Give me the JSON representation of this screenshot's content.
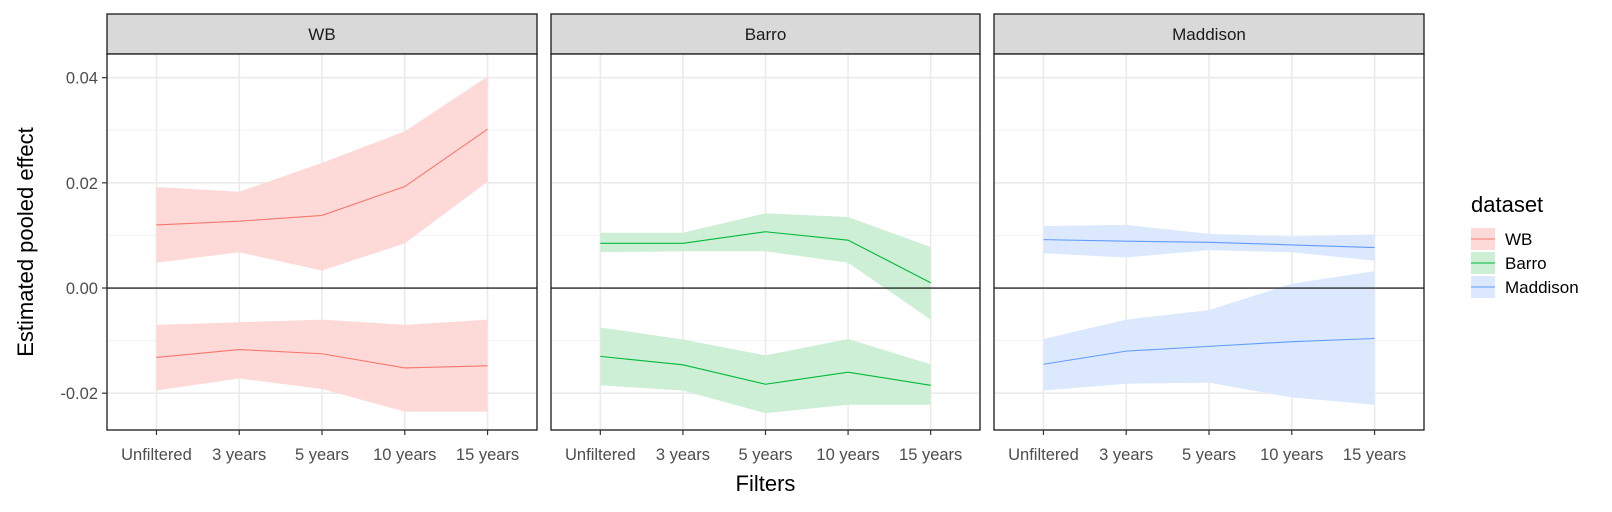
{
  "chart_data": {
    "type": "line",
    "facets": [
      "WB",
      "Barro",
      "Maddison"
    ],
    "categories": [
      "Unfiltered",
      "3 years",
      "5 years",
      "10 years",
      "15 years"
    ],
    "ylabel": "Estimated pooled effect",
    "xlabel": "Filters",
    "ylim": [
      -0.027,
      0.0445
    ],
    "yticks": [
      -0.02,
      0.0,
      0.02,
      0.04
    ],
    "ytick_labels": [
      "-0.02",
      "0.00",
      "0.02",
      "0.04"
    ],
    "hline": 0,
    "grid": true,
    "legend": {
      "title": "dataset",
      "position": "right",
      "entries": [
        "WB",
        "Barro",
        "Maddison"
      ]
    },
    "colors": {
      "WB": "#F8766D",
      "Barro": "#00BA38",
      "Maddison": "#619CFF",
      "WB_fill": "#FDDAD8",
      "Barro_fill": "#CCEFD5",
      "Maddison_fill": "#DCE8FD"
    },
    "series": [
      {
        "name": "WB",
        "facet": "WB",
        "values": [
          0.012,
          0.0127,
          0.0138,
          0.0193,
          0.0302
        ],
        "lower": [
          0.0048,
          0.0068,
          0.0033,
          0.0085,
          0.0202
        ],
        "upper": [
          0.0192,
          0.0183,
          0.0238,
          0.0298,
          0.0402
        ]
      },
      {
        "name": "WB",
        "facet": "WB",
        "values": [
          -0.0132,
          -0.0117,
          -0.0125,
          -0.0152,
          -0.0148
        ],
        "lower": [
          -0.0195,
          -0.0172,
          -0.0192,
          -0.0235,
          -0.0235
        ],
        "upper": [
          -0.007,
          -0.0065,
          -0.006,
          -0.007,
          -0.006
        ]
      },
      {
        "name": "Barro",
        "facet": "Barro",
        "values": [
          0.0085,
          0.0085,
          0.0107,
          0.0091,
          0.001
        ],
        "lower": [
          0.0068,
          0.007,
          0.007,
          0.0048,
          -0.006
        ],
        "upper": [
          0.0105,
          0.0105,
          0.0142,
          0.0135,
          0.0078
        ]
      },
      {
        "name": "Barro",
        "facet": "Barro",
        "values": [
          -0.013,
          -0.0146,
          -0.0183,
          -0.016,
          -0.0185
        ],
        "lower": [
          -0.0185,
          -0.0195,
          -0.0238,
          -0.0222,
          -0.0222
        ],
        "upper": [
          -0.0075,
          -0.0098,
          -0.0128,
          -0.0097,
          -0.0145
        ]
      },
      {
        "name": "Maddison",
        "facet": "Maddison",
        "values": [
          0.0092,
          0.0089,
          0.0087,
          0.0082,
          0.0077
        ],
        "lower": [
          0.0066,
          0.0058,
          0.0072,
          0.0068,
          0.0052
        ],
        "upper": [
          0.0118,
          0.012,
          0.0103,
          0.0098,
          0.0102
        ]
      },
      {
        "name": "Maddison",
        "facet": "Maddison",
        "values": [
          -0.0145,
          -0.012,
          -0.0111,
          -0.0102,
          -0.0096
        ],
        "lower": [
          -0.0195,
          -0.0182,
          -0.018,
          -0.0208,
          -0.0222
        ],
        "upper": [
          -0.0097,
          -0.006,
          -0.0042,
          0.0008,
          0.0032
        ]
      }
    ]
  }
}
